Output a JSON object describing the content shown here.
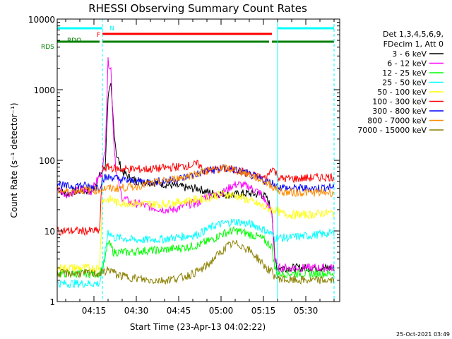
{
  "chart_data": {
    "type": "line",
    "title": "RHESSI Observing Summary Count Rates",
    "xlabel": "Start Time (23-Apr-13 04:02:22)",
    "ylabel": "Count Rate (s⁻¹ detector⁻¹)",
    "yscale": "log",
    "ylim": [
      1,
      10000
    ],
    "xlim": [
      "04:02",
      "05:42"
    ],
    "x_ticks": [
      "04:15",
      "04:30",
      "04:45",
      "05:00",
      "05:15",
      "05:30"
    ],
    "y_ticks": [
      "1",
      "10",
      "100",
      "1000",
      "10000"
    ],
    "legend_header": [
      "Det 1,3,4,5,6,9,",
      "FDecim 1, Att 0"
    ],
    "legend_placement": "right",
    "time_stamp": "25-Oct-2021 03:49",
    "x": [
      "04:02",
      "04:05",
      "04:08",
      "04:11",
      "04:14",
      "04:17",
      "04:18",
      "04:19",
      "04:20",
      "04:21",
      "04:22",
      "04:23",
      "04:25",
      "04:28",
      "04:31",
      "04:34",
      "04:37",
      "04:40",
      "04:43",
      "04:46",
      "04:49",
      "04:52",
      "04:54",
      "04:56",
      "04:58",
      "05:00",
      "05:02",
      "05:04",
      "05:06",
      "05:08",
      "05:10",
      "05:12",
      "05:14",
      "05:16",
      "05:18",
      "05:19",
      "05:20",
      "05:21",
      "05:24",
      "05:27",
      "05:30",
      "05:33",
      "05:36",
      "05:39",
      "05:40"
    ],
    "series": [
      {
        "name": "3 - 6 keV",
        "color": "#000000",
        "values": [
          40,
          33,
          36,
          38,
          36,
          60,
          70,
          85,
          800,
          1100,
          300,
          120,
          70,
          55,
          50,
          50,
          48,
          46,
          44,
          42,
          40,
          40,
          37,
          35,
          33,
          34,
          33,
          32,
          33,
          34,
          34,
          33,
          33,
          30,
          20,
          4,
          3,
          3,
          3,
          3,
          3,
          3,
          3,
          3,
          3
        ]
      },
      {
        "name": "6 - 12 keV",
        "color": "#ff00ff",
        "values": [
          40,
          33,
          36,
          38,
          36,
          60,
          70,
          150,
          2500,
          2000,
          200,
          60,
          30,
          25,
          24,
          22,
          21,
          20,
          20,
          22,
          24,
          25,
          30,
          32,
          32,
          34,
          38,
          44,
          46,
          44,
          42,
          38,
          34,
          25,
          18,
          4,
          3,
          3,
          3,
          3,
          3,
          3,
          3,
          3,
          3
        ]
      },
      {
        "name": "12 - 25 keV",
        "color": "#00ff00",
        "values": [
          2.5,
          2.5,
          2.5,
          2.5,
          2.5,
          2.5,
          3,
          4,
          7,
          6,
          5,
          5,
          5,
          5,
          5.2,
          5.3,
          5.3,
          5.4,
          5.6,
          5.8,
          6,
          6.3,
          6.8,
          7.3,
          8,
          9,
          9.5,
          10,
          10,
          9.5,
          9,
          8.5,
          8,
          7,
          6,
          3,
          2.5,
          2.5,
          2.5,
          2.5,
          2.5,
          2.5,
          2.5,
          2.5,
          2.5
        ]
      },
      {
        "name": "25 - 50 keV",
        "color": "#00ffff",
        "values": [
          1.8,
          1.8,
          1.8,
          1.8,
          1.8,
          1.8,
          3,
          5,
          10,
          9,
          8,
          8,
          8,
          7.5,
          7.5,
          7.5,
          7.6,
          7.7,
          8,
          8.3,
          8.6,
          9,
          10,
          11,
          12,
          12.5,
          13,
          13.5,
          13.5,
          13,
          12.5,
          12,
          11,
          10,
          9,
          8,
          8,
          8,
          8,
          8.3,
          8.5,
          8.8,
          9,
          9.3,
          9.5
        ]
      },
      {
        "name": "50 - 100 keV",
        "color": "#ffff00",
        "values": [
          3,
          3,
          3,
          3,
          3,
          3,
          28,
          27,
          28,
          28,
          27,
          25,
          25,
          25,
          24,
          24,
          24,
          24,
          25,
          26,
          27,
          28,
          29,
          30,
          32,
          33,
          33,
          32,
          31,
          29,
          27,
          25,
          23,
          21,
          20,
          20,
          19,
          18,
          17,
          17,
          17,
          17,
          18,
          18,
          18
        ]
      },
      {
        "name": "100 - 300 keV",
        "color": "#ff0000",
        "values": [
          10,
          10,
          10,
          10,
          10,
          10,
          75,
          78,
          80,
          80,
          77,
          76,
          75,
          75,
          75,
          75,
          76,
          78,
          80,
          82,
          85,
          88,
          70,
          72,
          74,
          76,
          76,
          74,
          72,
          68,
          64,
          60,
          58,
          55,
          80,
          70,
          60,
          55,
          55,
          55,
          56,
          57,
          58,
          58,
          58
        ]
      },
      {
        "name": "300 - 800 keV",
        "color": "#0000ff",
        "values": [
          48,
          42,
          44,
          44,
          42,
          42,
          55,
          56,
          57,
          58,
          57,
          55,
          53,
          51,
          50,
          50,
          50,
          51,
          53,
          56,
          60,
          65,
          70,
          72,
          74,
          76,
          76,
          74,
          71,
          67,
          63,
          58,
          54,
          50,
          48,
          46,
          44,
          42,
          40,
          40,
          40,
          40,
          41,
          42,
          42
        ]
      },
      {
        "name": "800 - 7000 keV",
        "color": "#ff8c00",
        "values": [
          38,
          36,
          37,
          38,
          38,
          38,
          40,
          40,
          40,
          40,
          40,
          40,
          41,
          42,
          44,
          46,
          48,
          51,
          54,
          57,
          61,
          66,
          70,
          72,
          74,
          76,
          76,
          74,
          71,
          67,
          62,
          58,
          53,
          48,
          44,
          40,
          38,
          36,
          35,
          35,
          35,
          35,
          35,
          35,
          35
        ]
      },
      {
        "name": "7000 - 15000 keV",
        "color": "#8b8000",
        "values": [
          2.5,
          2.5,
          2.5,
          2.5,
          2.5,
          2.5,
          2.6,
          2.7,
          2.8,
          2.8,
          2.6,
          2.4,
          2.3,
          2.2,
          2.1,
          2,
          2,
          2,
          2.1,
          2.2,
          2.4,
          2.7,
          3,
          3.5,
          4.3,
          5,
          6,
          6.5,
          6.5,
          6,
          5.3,
          4.5,
          3.7,
          3,
          2.6,
          2.3,
          2.2,
          2.1,
          2,
          2,
          2,
          2,
          2,
          2,
          2
        ]
      }
    ],
    "flags": [
      {
        "name": "N",
        "color": "#00ffff",
        "label": "N",
        "segments": [
          [
            "04:02",
            "04:18"
          ],
          [
            "05:20",
            "05:40"
          ]
        ]
      },
      {
        "name": "F",
        "color": "#ff0000",
        "label": "F",
        "segments": [
          [
            "04:18",
            "05:18"
          ]
        ]
      },
      {
        "name": "RDO",
        "color": "#008000",
        "label": "RDO",
        "segments": [
          [
            "04:02",
            "04:17"
          ],
          [
            "04:18",
            "04:53"
          ],
          [
            "04:53",
            "05:17"
          ],
          [
            "05:18",
            "05:40"
          ]
        ]
      },
      {
        "name": "RDS",
        "color": "#008000",
        "label": "RDS",
        "segments": []
      }
    ],
    "vlines": [
      {
        "x": "04:02",
        "color": "#00ffff",
        "style": "solid"
      },
      {
        "x": "04:18",
        "color": "#00ffff",
        "style": "dashed"
      },
      {
        "x": "05:20",
        "color": "#00ffff",
        "style": "solid"
      },
      {
        "x": "05:40",
        "color": "#00ffff",
        "style": "dashed"
      }
    ]
  }
}
